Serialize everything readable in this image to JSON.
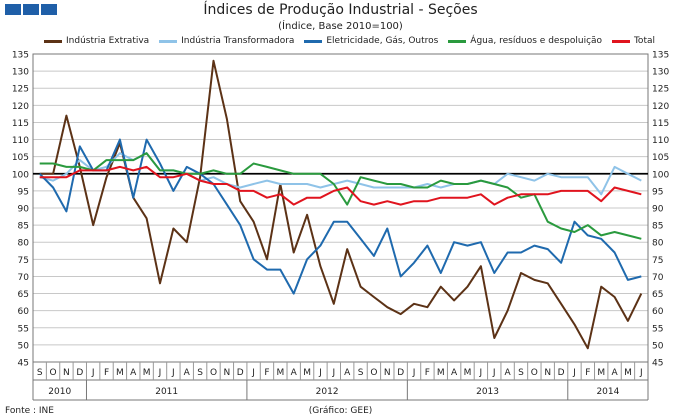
{
  "header": {
    "title": "Índices de Produção Industrial - Seções",
    "subtitle": "(Índice, Base 2010=100)"
  },
  "footer": {
    "source": "Fonte : INE",
    "credit": "(Gráfico: GEE)"
  },
  "colors": {
    "extrativa": "#5c3216",
    "transformadora": "#8fc3e8",
    "eletricidade": "#1f6aae",
    "agua": "#2a9a3e",
    "total": "#e0141e",
    "reference": "#000000",
    "grid": "#c8c8c8"
  },
  "chart_data": {
    "type": "line",
    "title": "Índices de Produção Industrial - Seções",
    "subtitle": "(Índice, Base 2010=100)",
    "ylim": [
      45,
      135
    ],
    "yticks": [
      45,
      50,
      55,
      60,
      65,
      70,
      75,
      80,
      85,
      90,
      95,
      100,
      105,
      110,
      115,
      120,
      125,
      130,
      135
    ],
    "reference_line": 100,
    "months": [
      "S",
      "O",
      "N",
      "D",
      "J",
      "F",
      "M",
      "A",
      "M",
      "J",
      "J",
      "A",
      "S",
      "O",
      "N",
      "D",
      "J",
      "F",
      "M",
      "A",
      "M",
      "J",
      "J",
      "A",
      "S",
      "O",
      "N",
      "D",
      "J",
      "F",
      "M",
      "A",
      "M",
      "J",
      "J",
      "A",
      "S",
      "O",
      "N",
      "D",
      "J",
      "F",
      "M",
      "A",
      "M",
      "J"
    ],
    "years": [
      {
        "label": "2010",
        "start": 0,
        "count": 4
      },
      {
        "label": "2011",
        "start": 4,
        "count": 12
      },
      {
        "label": "2012",
        "start": 16,
        "count": 12
      },
      {
        "label": "2013",
        "start": 28,
        "count": 12
      },
      {
        "label": "2014",
        "start": 40,
        "count": 6
      }
    ],
    "series": [
      {
        "key": "extrativa",
        "name": "Indústria Extrativa",
        "values": [
          100,
          100,
          117,
          102,
          85,
          99,
          109,
          93,
          87,
          68,
          84,
          80,
          99,
          133,
          116,
          92,
          86,
          75,
          97,
          77,
          88,
          73,
          62,
          78,
          67,
          64,
          61,
          59,
          62,
          61,
          67,
          63,
          67,
          73,
          52,
          60,
          71,
          69,
          68,
          62,
          56,
          49,
          67,
          64,
          57,
          65
        ]
      },
      {
        "key": "transformadora",
        "name": "Indústria Transformadora",
        "values": [
          99,
          98,
          100,
          104,
          101,
          102,
          106,
          104,
          106,
          101,
          101,
          100,
          98,
          99,
          97,
          96,
          97,
          98,
          97,
          97,
          97,
          96,
          97,
          98,
          97,
          96,
          96,
          96,
          96,
          97,
          96,
          97,
          97,
          98,
          97,
          100,
          99,
          98,
          100,
          99,
          99,
          99,
          94,
          102,
          100,
          98
        ]
      },
      {
        "key": "eletricidade",
        "name": "Eletricidade, Gás, Outros",
        "values": [
          100,
          96,
          89,
          108,
          101,
          101,
          110,
          93,
          110,
          103,
          95,
          102,
          100,
          97,
          91,
          85,
          75,
          72,
          72,
          65,
          75,
          79,
          86,
          86,
          81,
          76,
          84,
          70,
          74,
          79,
          71,
          80,
          79,
          80,
          71,
          77,
          77,
          79,
          78,
          74,
          86,
          82,
          81,
          77,
          69,
          70
        ]
      },
      {
        "key": "agua",
        "name": "Água, resíduos e despoluição",
        "values": [
          103,
          103,
          102,
          102,
          101,
          104,
          104,
          104,
          106,
          101,
          101,
          100,
          100,
          101,
          100,
          100,
          103,
          102,
          101,
          100,
          100,
          100,
          97,
          91,
          99,
          98,
          97,
          97,
          96,
          96,
          98,
          97,
          97,
          98,
          97,
          96,
          93,
          94,
          86,
          84,
          83,
          85,
          82,
          83,
          82,
          81
        ]
      },
      {
        "key": "total",
        "name": "Total",
        "values": [
          99,
          99,
          99,
          101,
          101,
          101,
          102,
          101,
          102,
          99,
          99,
          100,
          98,
          97,
          97,
          95,
          95,
          93,
          94,
          91,
          93,
          93,
          95,
          96,
          92,
          91,
          92,
          91,
          92,
          92,
          93,
          93,
          93,
          94,
          91,
          93,
          94,
          94,
          94,
          95,
          95,
          95,
          92,
          96,
          95,
          94
        ]
      }
    ]
  }
}
